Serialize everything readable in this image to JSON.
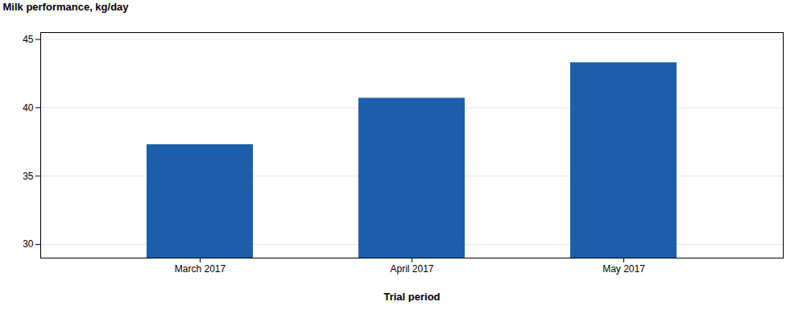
{
  "chart_data": {
    "type": "bar",
    "categories": [
      "March 2017",
      "April 2017",
      "May 2017"
    ],
    "values": [
      37.3,
      40.7,
      43.3
    ],
    "color": "#1B5FAA",
    "xlabel": "Trial period",
    "ylabel": "Milk performance, kg/day",
    "ylim": [
      29,
      45.5
    ],
    "yticks": [
      30,
      35,
      40,
      45
    ],
    "grid": true
  }
}
